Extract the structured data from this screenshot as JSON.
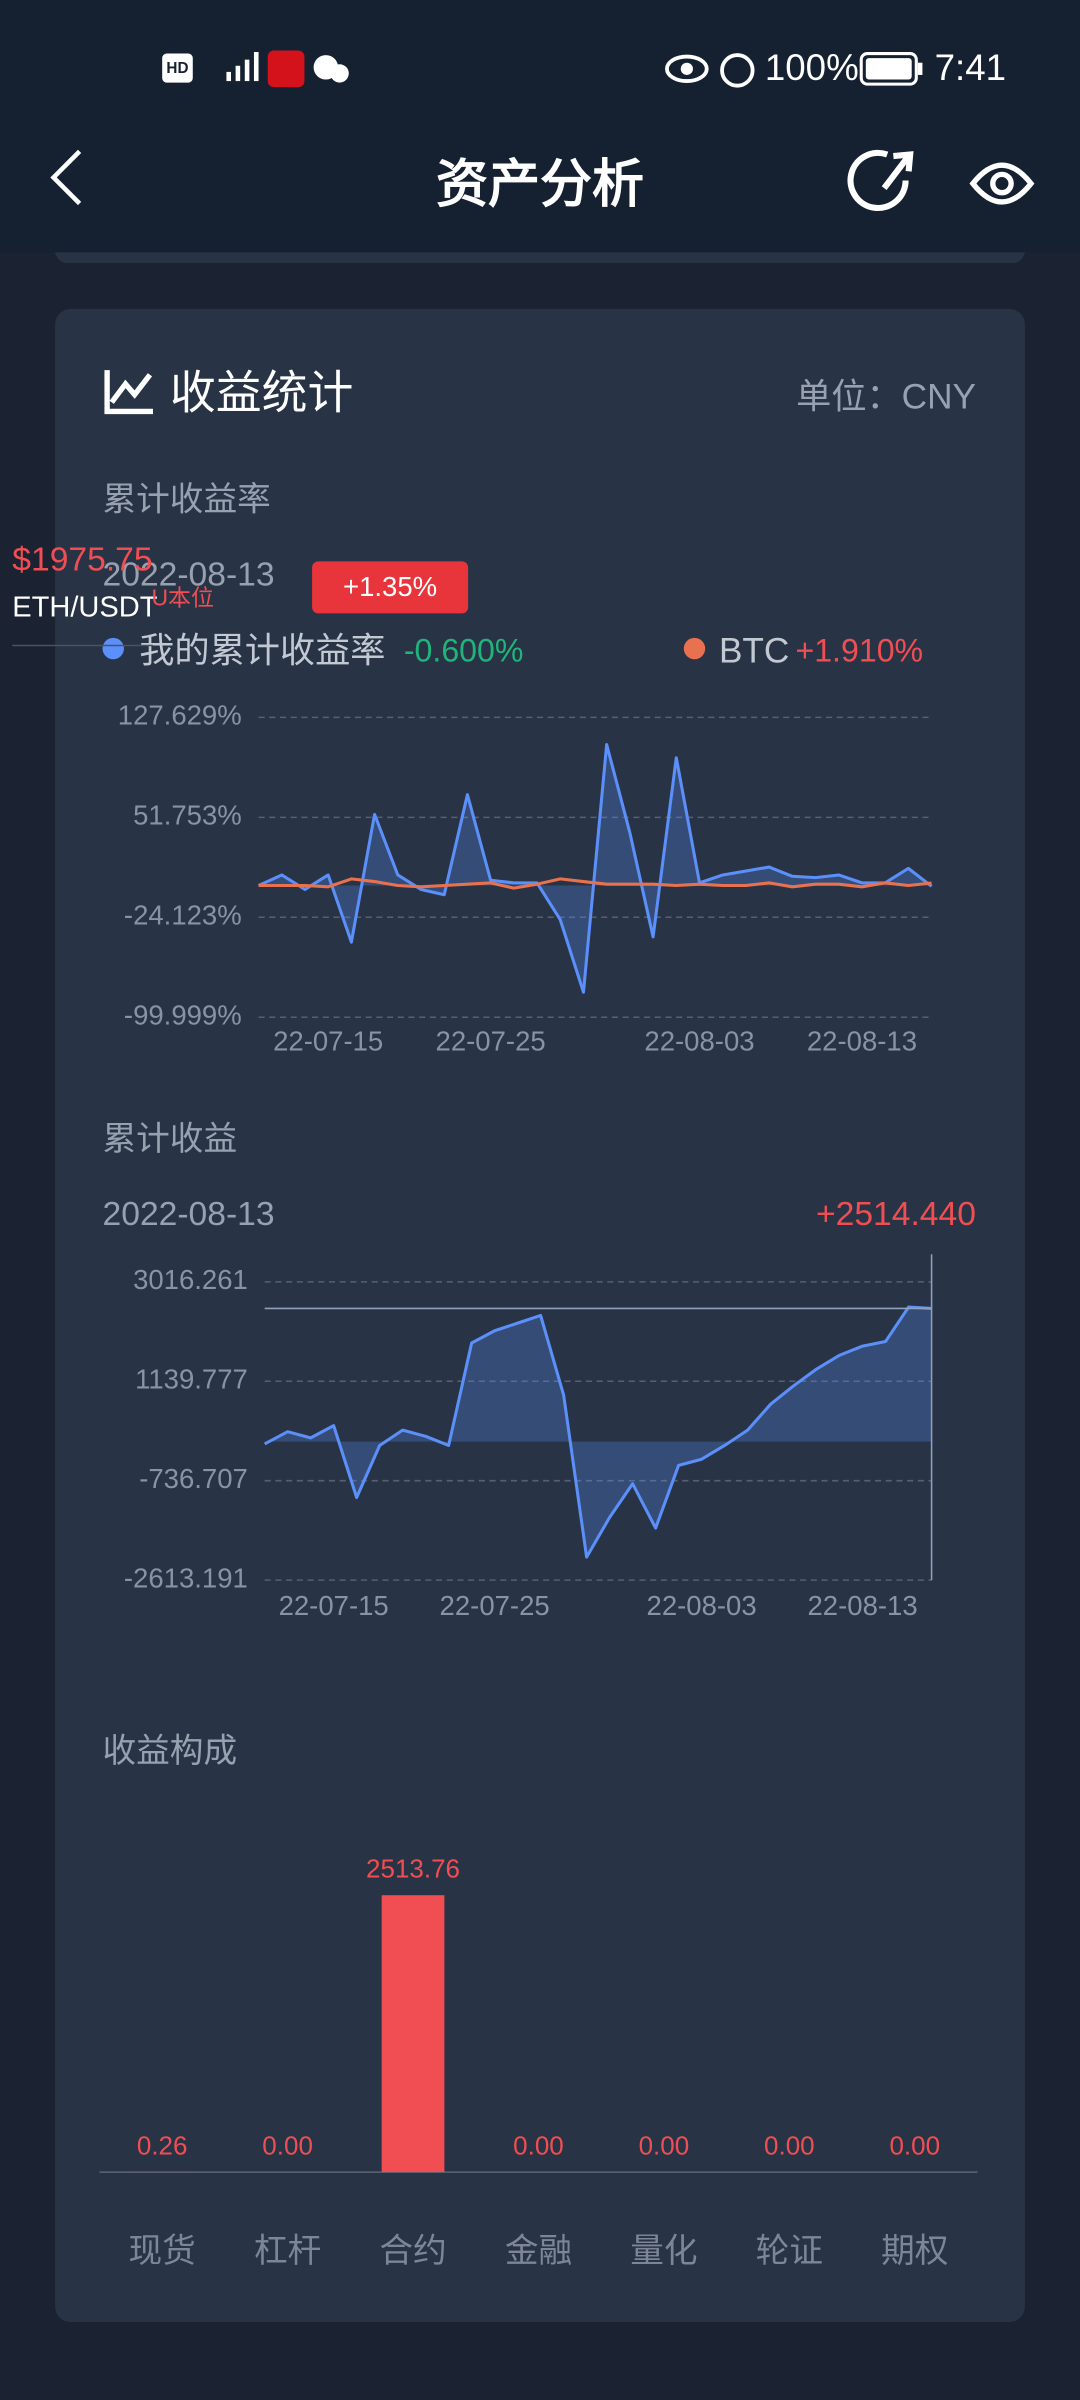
{
  "status_bar": {
    "battery": "100%",
    "time": "7:41"
  },
  "header": {
    "title": "资产分析"
  },
  "ticker": {
    "price": "$1975.75",
    "pair": "ETH/USDT",
    "tag": "U本位"
  },
  "card": {
    "title": "收益统计",
    "unit": "单位：CNY"
  },
  "return_rate_chart": {
    "type": "line",
    "title": "累计收益率",
    "date": "2022-08-13",
    "badge": "+1.35%",
    "categories": [
      null,
      null,
      null,
      "22-07-15",
      null,
      null,
      null,
      null,
      null,
      null,
      "22-07-25",
      null,
      null,
      null,
      null,
      null,
      null,
      null,
      null,
      "22-08-03",
      null,
      null,
      null,
      null,
      null,
      null,
      "22-08-13",
      null,
      null,
      null
    ],
    "series": [
      {
        "name": "我的累计收益率",
        "color": "#5b8ff9",
        "value_label": "-0.600%",
        "values": [
          0,
          8,
          -3,
          8,
          -43,
          54,
          8,
          -3,
          -7,
          69,
          4,
          2,
          2,
          -26,
          -81,
          107,
          40,
          -39,
          97,
          2,
          8,
          11,
          14,
          7,
          6,
          8,
          2,
          2,
          13,
          -0.6
        ]
      },
      {
        "name": "BTC",
        "color": "#e8714f",
        "value_label": "+1.910%",
        "values": [
          0,
          0,
          0,
          -1,
          5,
          3,
          0,
          -1,
          0,
          1,
          2,
          -2,
          1,
          5,
          3,
          1,
          1,
          1,
          0,
          1,
          0,
          0,
          2,
          -1,
          1,
          1,
          -1,
          2,
          0,
          1.91
        ]
      }
    ],
    "ylim": [
      -99.999,
      127.629
    ],
    "yticks": [
      {
        "value": -99.999,
        "label": "-99.999%"
      },
      {
        "value": -24.123,
        "label": "-24.123%"
      },
      {
        "value": 51.753,
        "label": "51.753%"
      },
      {
        "value": 127.629,
        "label": "127.629%"
      }
    ],
    "grid": true
  },
  "profit_chart": {
    "type": "line",
    "title": "累计收益",
    "date": "2022-08-13",
    "categories": [
      null,
      null,
      null,
      "22-07-15",
      null,
      null,
      null,
      null,
      null,
      null,
      "22-07-25",
      null,
      null,
      null,
      null,
      null,
      null,
      null,
      null,
      "22-08-03",
      null,
      null,
      null,
      null,
      null,
      null,
      "22-08-13",
      null,
      null,
      null
    ],
    "series": [
      {
        "name": "累计收益",
        "color": "#5b8ff9",
        "value_label": "+2514.440",
        "values": [
          -43,
          188,
          72,
          303,
          -1054,
          -72,
          217,
          101,
          -72,
          1862,
          2093,
          2237,
          2382,
          880,
          -2180,
          -1429,
          -794,
          -1631,
          -447,
          -332,
          -72,
          217,
          707,
          1054,
          1371,
          1631,
          1804,
          1891,
          2540,
          2514.44
        ]
      }
    ],
    "ylim": [
      -2613.191,
      3016.261
    ],
    "yticks": [
      {
        "value": -2613.191,
        "label": "-2613.191"
      },
      {
        "value": -736.707,
        "label": "-736.707"
      },
      {
        "value": 1139.777,
        "label": "1139.777"
      },
      {
        "value": 3016.261,
        "label": "3016.261"
      }
    ],
    "grid": true,
    "crosshair": true
  },
  "composition_chart": {
    "type": "bar",
    "title": "收益构成",
    "color": "#f04e52",
    "categories": [
      "现货",
      "杠杆",
      "合约",
      "金融",
      "量化",
      "轮证",
      "期权"
    ],
    "values": [
      0.26,
      0,
      2513.76,
      0,
      0,
      0,
      0
    ],
    "value_labels": [
      "0.26",
      "0.00",
      "2513.76",
      "0.00",
      "0.00",
      "0.00",
      "0.00"
    ]
  }
}
